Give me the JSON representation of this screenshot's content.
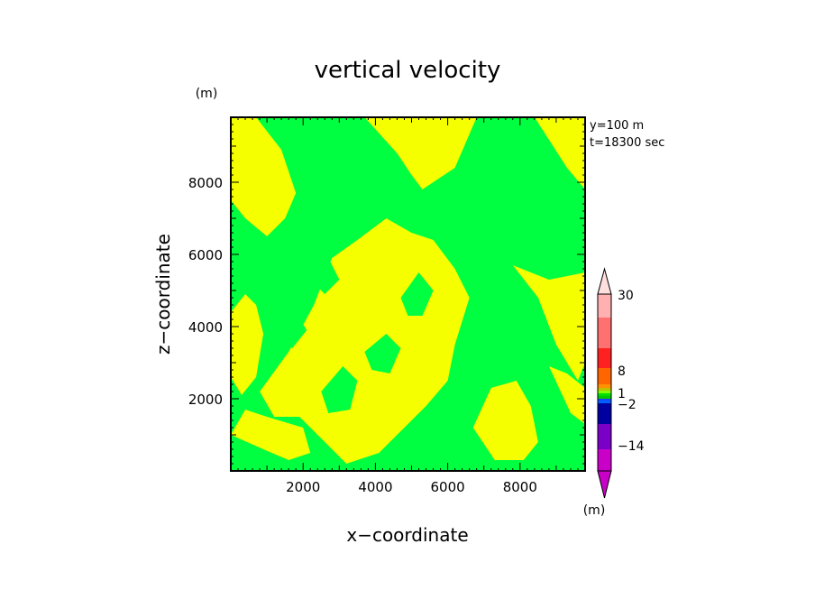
{
  "chart_data": {
    "type": "heatmap",
    "title": "vertical velocity",
    "xlabel": "x−coordinate",
    "ylabel": "z−coordinate",
    "y_unit": "(m)",
    "annotations": [
      "y=100  m",
      "t=18300 sec"
    ],
    "xlim": [
      0,
      9800
    ],
    "ylim": [
      0,
      9800
    ],
    "x_ticks": [
      2000,
      4000,
      6000,
      8000
    ],
    "y_ticks": [
      2000,
      4000,
      6000,
      8000
    ],
    "x_tick_labels": [
      "2000",
      "4000",
      "6000",
      "8000"
    ],
    "y_tick_labels": [
      "2000",
      "4000",
      "6000",
      "8000"
    ],
    "grid": false,
    "field_colors": {
      "green": "#00ff40",
      "yellow": "#f5ff00"
    },
    "yellow_regions": [
      [
        [
          0,
          4400
        ],
        [
          400,
          4900
        ],
        [
          700,
          4600
        ],
        [
          900,
          3800
        ],
        [
          700,
          2600
        ],
        [
          300,
          2100
        ],
        [
          0,
          2600
        ]
      ],
      [
        [
          800,
          2200
        ],
        [
          1600,
          3300
        ],
        [
          2300,
          4600
        ],
        [
          2800,
          5900
        ],
        [
          3500,
          6400
        ],
        [
          4300,
          7000
        ],
        [
          5000,
          6600
        ],
        [
          5600,
          6400
        ],
        [
          6200,
          5600
        ],
        [
          6600,
          4800
        ],
        [
          6200,
          3500
        ],
        [
          6000,
          2500
        ],
        [
          5400,
          1800
        ],
        [
          4800,
          1200
        ],
        [
          4100,
          500
        ],
        [
          3200,
          200
        ],
        [
          2500,
          900
        ],
        [
          1900,
          1500
        ],
        [
          1200,
          1500
        ]
      ],
      [
        [
          0,
          9800
        ],
        [
          700,
          9800
        ],
        [
          1400,
          8900
        ],
        [
          1800,
          7700
        ],
        [
          1500,
          7000
        ],
        [
          1000,
          6500
        ],
        [
          400,
          7000
        ],
        [
          0,
          7500
        ]
      ],
      [
        [
          3700,
          9800
        ],
        [
          4600,
          8800
        ],
        [
          5000,
          8200
        ],
        [
          5300,
          7800
        ],
        [
          6200,
          8400
        ],
        [
          6800,
          9800
        ]
      ],
      [
        [
          8400,
          9800
        ],
        [
          9300,
          8400
        ],
        [
          9800,
          7800
        ],
        [
          9800,
          9800
        ]
      ],
      [
        [
          7800,
          5700
        ],
        [
          8500,
          4800
        ],
        [
          9000,
          3500
        ],
        [
          9600,
          2500
        ],
        [
          9800,
          3000
        ],
        [
          9800,
          5500
        ],
        [
          8800,
          5300
        ]
      ],
      [
        [
          0,
          1000
        ],
        [
          900,
          600
        ],
        [
          1600,
          300
        ],
        [
          2200,
          500
        ],
        [
          2000,
          1200
        ],
        [
          1000,
          1500
        ],
        [
          400,
          1700
        ]
      ],
      [
        [
          6700,
          1200
        ],
        [
          7200,
          2300
        ],
        [
          7900,
          2500
        ],
        [
          8300,
          1800
        ],
        [
          8500,
          800
        ],
        [
          8100,
          300
        ],
        [
          7300,
          300
        ]
      ],
      [
        [
          8800,
          2900
        ],
        [
          9400,
          1600
        ],
        [
          9800,
          1300
        ],
        [
          9800,
          2300
        ],
        [
          9300,
          2700
        ]
      ]
    ],
    "green_regions": [
      [
        [
          2500,
          2200
        ],
        [
          3100,
          2900
        ],
        [
          3500,
          2500
        ],
        [
          3300,
          1700
        ],
        [
          2700,
          1600
        ]
      ],
      [
        [
          3700,
          3300
        ],
        [
          4300,
          3800
        ],
        [
          4700,
          3400
        ],
        [
          4400,
          2700
        ],
        [
          3900,
          2800
        ]
      ],
      [
        [
          4700,
          4800
        ],
        [
          5200,
          5500
        ],
        [
          5600,
          5000
        ],
        [
          5300,
          4300
        ],
        [
          4900,
          4300
        ]
      ],
      [
        [
          2100,
          5400
        ],
        [
          2700,
          5900
        ],
        [
          3000,
          5300
        ],
        [
          2600,
          4900
        ]
      ],
      [
        [
          1400,
          3800
        ],
        [
          1800,
          4400
        ],
        [
          2100,
          3900
        ],
        [
          1700,
          3400
        ]
      ]
    ],
    "colorbar": {
      "unit": "(m)",
      "labels": [
        "30",
        "8",
        "1",
        "−2",
        "−14"
      ],
      "colors": [
        "#7a00c8",
        "#c800c8",
        "#0000a0",
        "#1a40ff",
        "#00c800",
        "#90e000",
        "#ff9000",
        "#ff4040",
        "#ff0000",
        "#ff7070",
        "#ffb0b0"
      ]
    }
  }
}
